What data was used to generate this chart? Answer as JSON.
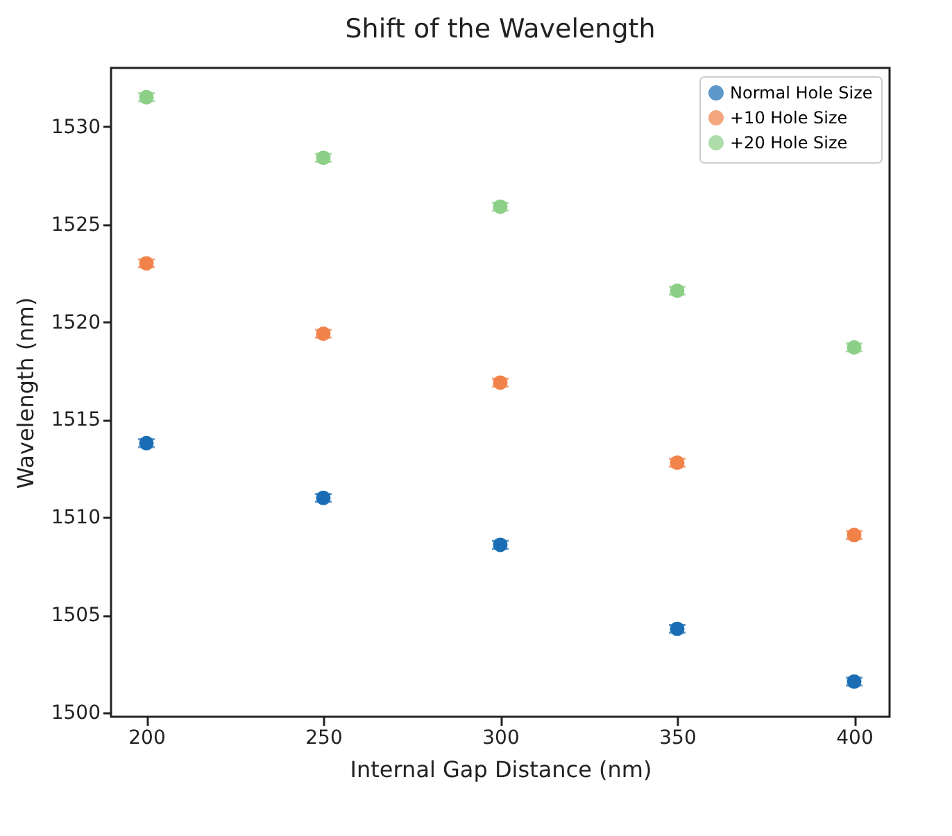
{
  "chart_data": {
    "type": "scatter",
    "title": "Shift of the Wavelength",
    "xlabel": "Internal Gap Distance (nm)",
    "ylabel": "Wavelength (nm)",
    "x": [
      200,
      250,
      300,
      350,
      400
    ],
    "series": [
      {
        "name": "Normal Hole Size",
        "color": "#1a6db5",
        "values": [
          1513.8,
          1511.0,
          1508.6,
          1504.3,
          1501.6
        ],
        "errors": [
          0.2,
          0.2,
          0.2,
          0.2,
          0.2
        ]
      },
      {
        "name": "+10 Hole Size",
        "color": "#f0824a",
        "values": [
          1523.0,
          1519.4,
          1516.9,
          1512.8,
          1509.1
        ],
        "errors": [
          0.2,
          0.2,
          0.2,
          0.2,
          0.2
        ]
      },
      {
        "name": "+20 Hole Size",
        "color": "#8ccf87",
        "values": [
          1531.5,
          1528.4,
          1525.9,
          1521.6,
          1518.7
        ],
        "errors": [
          0.2,
          0.2,
          0.2,
          0.2,
          0.2
        ]
      }
    ],
    "xlim": [
      190,
      410
    ],
    "xticks": [
      200,
      250,
      300,
      350,
      400
    ],
    "ylim": [
      1499.8,
      1533
    ],
    "yticks": [
      1500,
      1505,
      1510,
      1515,
      1520,
      1525,
      1530
    ],
    "grid": false,
    "legend": "top right",
    "marker": "circle"
  }
}
